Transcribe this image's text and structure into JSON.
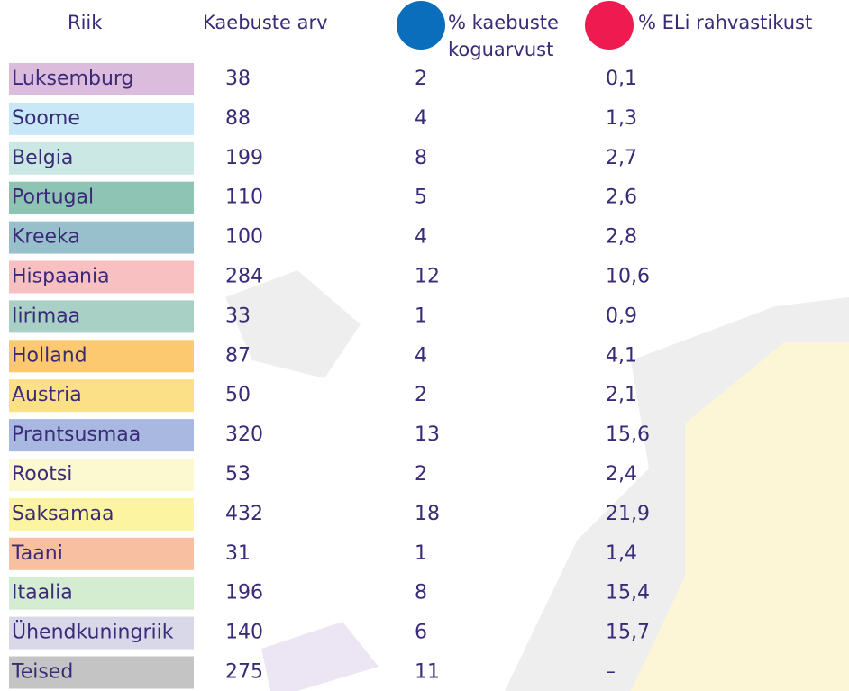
{
  "header": {
    "country": "Riik",
    "complaints": "Kaebuste arv",
    "share_line1": "% kaebuste",
    "share_line2": "koguarvust",
    "population": "% ELi rahvastikust",
    "share_color": "#0a6ebd",
    "population_color": "#ef1a4f"
  },
  "table": {
    "rows": [
      {
        "country": "Luksemburg",
        "complaints": "38",
        "share": "2",
        "population": "0,1",
        "color": "#dcbcdc"
      },
      {
        "country": "Soome",
        "complaints": "88",
        "share": "4",
        "population": "1,3",
        "color": "#c8e8f8"
      },
      {
        "country": "Belgia",
        "complaints": "199",
        "share": "8",
        "population": "2,7",
        "color": "#cce8e4"
      },
      {
        "country": "Portugal",
        "complaints": "110",
        "share": "5",
        "population": "2,6",
        "color": "#8ec4b4"
      },
      {
        "country": "Kreeka",
        "complaints": "100",
        "share": "4",
        "population": "2,8",
        "color": "#98c0cc"
      },
      {
        "country": "Hispaania",
        "complaints": "284",
        "share": "12",
        "population": "10,6",
        "color": "#f8c0c0"
      },
      {
        "country": "Iirimaa",
        "complaints": "33",
        "share": "1",
        "population": "0,9",
        "color": "#a8d0c4"
      },
      {
        "country": "Holland",
        "complaints": "87",
        "share": "4",
        "population": "4,1",
        "color": "#fcc870"
      },
      {
        "country": "Austria",
        "complaints": "50",
        "share": "2",
        "population": "2,1",
        "color": "#fce088"
      },
      {
        "country": "Prantsusmaa",
        "complaints": "320",
        "share": "13",
        "population": "15,6",
        "color": "#a8b8e0"
      },
      {
        "country": "Rootsi",
        "complaints": "53",
        "share": "2",
        "population": "2,4",
        "color": "#fcf8d0"
      },
      {
        "country": "Saksamaa",
        "complaints": "432",
        "share": "18",
        "population": "21,9",
        "color": "#fcf4a0"
      },
      {
        "country": "Taani",
        "complaints": "31",
        "share": "1",
        "population": "1,4",
        "color": "#f8c0a0"
      },
      {
        "country": "Itaalia",
        "complaints": "196",
        "share": "8",
        "population": "15,4",
        "color": "#d4ecd0"
      },
      {
        "country": "Ühendkuningriik",
        "complaints": "140",
        "share": "6",
        "population": "15,7",
        "color": "#d8d8e8"
      },
      {
        "country": "Teised",
        "complaints": "275",
        "share": "11",
        "population": "–",
        "color": "#c4c4c4"
      }
    ]
  }
}
